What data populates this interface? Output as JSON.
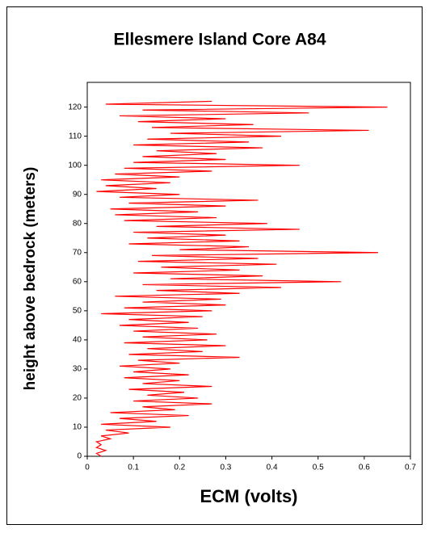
{
  "chart_data": {
    "type": "line",
    "title": "Ellesmere Island Core A84",
    "xlabel": "ECM (volts)",
    "ylabel": "height above bedrock (meters)",
    "color": "#ff0000",
    "xlim": [
      0,
      0.7
    ],
    "xticks": [
      0,
      0.1,
      0.2,
      0.3,
      0.4,
      0.5,
      0.6,
      0.7
    ],
    "ylim": [
      0,
      128.5
    ],
    "yticks": [
      0,
      10,
      20,
      30,
      40,
      50,
      60,
      70,
      80,
      90,
      100,
      110,
      120
    ],
    "y": [
      0,
      1,
      2,
      3,
      4,
      5,
      6,
      7,
      8,
      9,
      10,
      11,
      12,
      13,
      14,
      15,
      16,
      17,
      18,
      19,
      20,
      21,
      22,
      23,
      24,
      25,
      26,
      27,
      28,
      29,
      30,
      31,
      32,
      33,
      34,
      35,
      36,
      37,
      38,
      39,
      40,
      41,
      42,
      43,
      44,
      45,
      46,
      47,
      48,
      49,
      50,
      51,
      52,
      53,
      54,
      55,
      56,
      57,
      58,
      59,
      60,
      61,
      62,
      63,
      64,
      65,
      66,
      67,
      68,
      69,
      70,
      71,
      72,
      73,
      74,
      75,
      76,
      77,
      78,
      79,
      80,
      81,
      82,
      83,
      84,
      85,
      86,
      87,
      88,
      89,
      90,
      91,
      92,
      93,
      94,
      95,
      96,
      97,
      98,
      99,
      100,
      101,
      102,
      103,
      104,
      105,
      106,
      107,
      108,
      109,
      110,
      111,
      112,
      113,
      114,
      115,
      116,
      117,
      118,
      119,
      120,
      121,
      122
    ],
    "values": [
      0.03,
      0.02,
      0.04,
      0.02,
      0.03,
      0.02,
      0.05,
      0.03,
      0.09,
      0.04,
      0.18,
      0.03,
      0.15,
      0.07,
      0.22,
      0.05,
      0.19,
      0.12,
      0.27,
      0.1,
      0.24,
      0.13,
      0.21,
      0.09,
      0.27,
      0.12,
      0.2,
      0.08,
      0.22,
      0.1,
      0.18,
      0.07,
      0.2,
      0.11,
      0.33,
      0.09,
      0.25,
      0.13,
      0.3,
      0.08,
      0.26,
      0.12,
      0.28,
      0.1,
      0.24,
      0.07,
      0.22,
      0.09,
      0.25,
      0.03,
      0.27,
      0.08,
      0.3,
      0.12,
      0.29,
      0.06,
      0.33,
      0.15,
      0.42,
      0.12,
      0.55,
      0.18,
      0.38,
      0.1,
      0.33,
      0.16,
      0.41,
      0.11,
      0.37,
      0.14,
      0.63,
      0.2,
      0.35,
      0.09,
      0.33,
      0.13,
      0.3,
      0.1,
      0.46,
      0.15,
      0.39,
      0.08,
      0.28,
      0.06,
      0.24,
      0.05,
      0.3,
      0.09,
      0.37,
      0.07,
      0.2,
      0.02,
      0.15,
      0.04,
      0.18,
      0.03,
      0.2,
      0.06,
      0.27,
      0.08,
      0.46,
      0.1,
      0.3,
      0.12,
      0.28,
      0.15,
      0.38,
      0.1,
      0.35,
      0.13,
      0.42,
      0.18,
      0.61,
      0.14,
      0.36,
      0.11,
      0.3,
      0.07,
      0.48,
      0.12,
      0.65,
      0.04,
      0.27
    ]
  }
}
